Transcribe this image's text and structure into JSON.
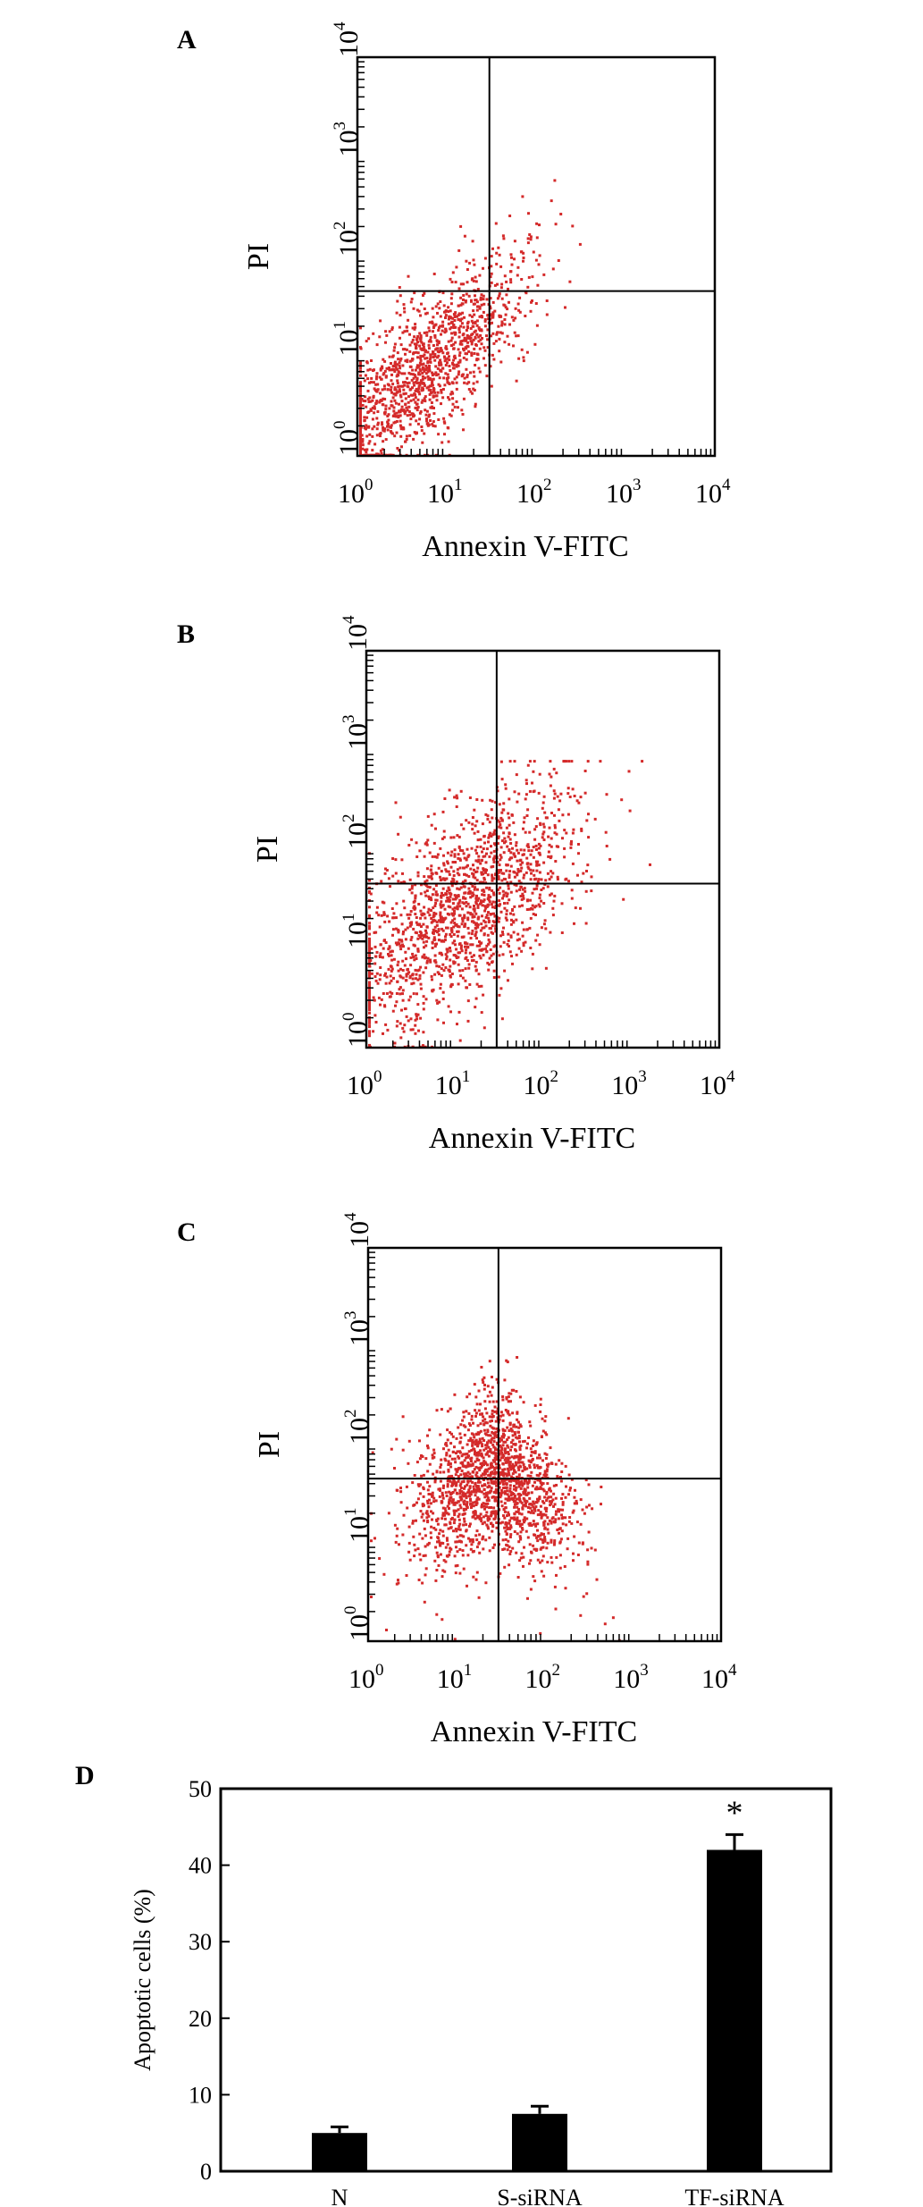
{
  "panels": [
    {
      "letter": "A",
      "ylabel": "PI",
      "xlabel": "Annexin V-FITC",
      "x_ticks": [
        {
          "base": "10",
          "exp": "0"
        },
        {
          "base": "10",
          "exp": "1"
        },
        {
          "base": "10",
          "exp": "2"
        },
        {
          "base": "10",
          "exp": "3"
        },
        {
          "base": "10",
          "exp": "4"
        }
      ],
      "y_ticks": [
        {
          "base": "10",
          "exp": "0"
        },
        {
          "base": "10",
          "exp": "1"
        },
        {
          "base": "10",
          "exp": "2"
        },
        {
          "base": "10",
          "exp": "3"
        },
        {
          "base": "10",
          "exp": "4"
        }
      ]
    },
    {
      "letter": "B",
      "ylabel": "PI",
      "xlabel": "Annexin V-FITC",
      "x_ticks": [
        {
          "base": "10",
          "exp": "0"
        },
        {
          "base": "10",
          "exp": "1"
        },
        {
          "base": "10",
          "exp": "2"
        },
        {
          "base": "10",
          "exp": "3"
        },
        {
          "base": "10",
          "exp": "4"
        }
      ],
      "y_ticks": [
        {
          "base": "10",
          "exp": "0"
        },
        {
          "base": "10",
          "exp": "1"
        },
        {
          "base": "10",
          "exp": "2"
        },
        {
          "base": "10",
          "exp": "3"
        },
        {
          "base": "10",
          "exp": "4"
        }
      ]
    },
    {
      "letter": "C",
      "ylabel": "PI",
      "xlabel": "Annexin V-FITC",
      "x_ticks": [
        {
          "base": "10",
          "exp": "0"
        },
        {
          "base": "10",
          "exp": "1"
        },
        {
          "base": "10",
          "exp": "2"
        },
        {
          "base": "10",
          "exp": "3"
        },
        {
          "base": "10",
          "exp": "4"
        }
      ],
      "y_ticks": [
        {
          "base": "10",
          "exp": "0"
        },
        {
          "base": "10",
          "exp": "1"
        },
        {
          "base": "10",
          "exp": "2"
        },
        {
          "base": "10",
          "exp": "3"
        },
        {
          "base": "10",
          "exp": "4"
        }
      ]
    }
  ],
  "dot_color": "#d42a2a",
  "chart_data": [
    {
      "panel": "A",
      "type": "scatter",
      "xlabel": "Annexin V-FITC",
      "ylabel": "PI",
      "x_scale": "log",
      "y_scale": "log",
      "xlim": [
        1,
        10000
      ],
      "ylim": [
        1,
        10000
      ],
      "quadrant_gate": {
        "x": 30,
        "y": 45
      },
      "population": {
        "center": [
          5,
          7
        ],
        "spread": "diagonal",
        "points": 1400
      }
    },
    {
      "panel": "B",
      "type": "scatter",
      "xlabel": "Annexin V-FITC",
      "ylabel": "PI",
      "x_scale": "log",
      "y_scale": "log",
      "xlim": [
        1,
        10000
      ],
      "ylim": [
        1,
        10000
      ],
      "quadrant_gate": {
        "x": 30,
        "y": 45
      },
      "population": {
        "center": [
          12,
          25
        ],
        "spread": "broad",
        "points": 1600
      }
    },
    {
      "panel": "C",
      "type": "scatter",
      "xlabel": "Annexin V-FITC",
      "ylabel": "PI",
      "x_scale": "log",
      "y_scale": "log",
      "xlim": [
        1,
        10000
      ],
      "ylim": [
        1,
        10000
      ],
      "quadrant_gate": {
        "x": 30,
        "y": 45
      },
      "population": {
        "center": [
          25,
          60
        ],
        "spread": "tent",
        "points": 1700
      }
    },
    {
      "panel": "D",
      "type": "bar",
      "categories": [
        "N",
        "S-siRNA",
        "TF-siRNA"
      ],
      "values": [
        5,
        7.5,
        42
      ],
      "errors": [
        0.8,
        1.0,
        2.0
      ],
      "annotations": [
        "",
        "",
        "*"
      ],
      "xlabel": "",
      "ylabel": "Apoptotic cells (%)",
      "ylim": [
        0,
        50
      ],
      "y_ticks": [
        "0",
        "10",
        "20",
        "30",
        "40",
        "50"
      ]
    }
  ],
  "panel_d": {
    "letter": "D"
  }
}
